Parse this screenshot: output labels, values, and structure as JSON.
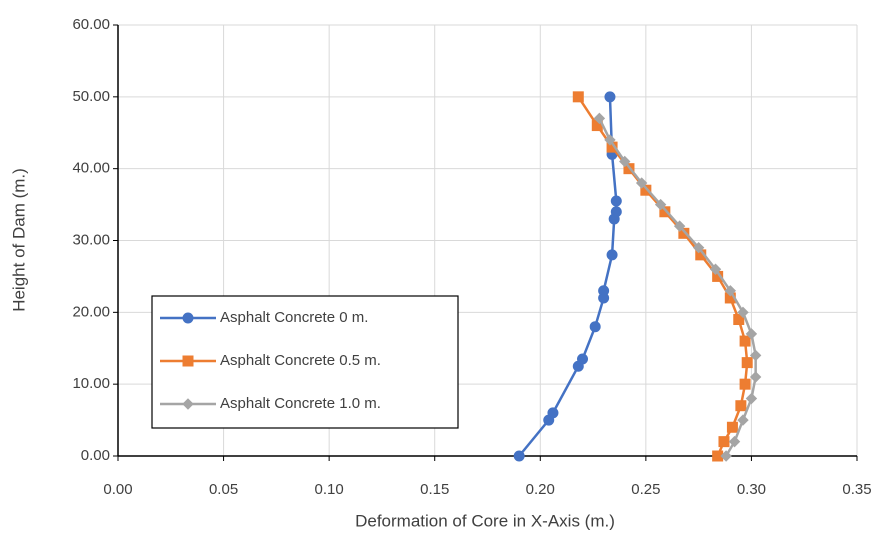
{
  "chart_data": {
    "type": "line",
    "x_label": "Deformation of Core in X-Axis (m.)",
    "y_label": "Height of Dam (m.)",
    "xlim": [
      0,
      0.35
    ],
    "ylim": [
      0,
      60
    ],
    "xticks": [
      {
        "value": 0,
        "label": "0.00"
      },
      {
        "value": 0.05,
        "label": "0.05"
      },
      {
        "value": 0.1,
        "label": "0.10"
      },
      {
        "value": 0.15,
        "label": "0.15"
      },
      {
        "value": 0.2,
        "label": "0.20"
      },
      {
        "value": 0.25,
        "label": "0.25"
      },
      {
        "value": 0.3,
        "label": "0.30"
      },
      {
        "value": 0.35,
        "label": "0.35"
      }
    ],
    "yticks": [
      {
        "value": 0,
        "label": "0.00"
      },
      {
        "value": 10,
        "label": "10.00"
      },
      {
        "value": 20,
        "label": "20.00"
      },
      {
        "value": 30,
        "label": "30.00"
      },
      {
        "value": 40,
        "label": "40.00"
      },
      {
        "value": 50,
        "label": "50.00"
      },
      {
        "value": 60,
        "label": "60.00"
      }
    ],
    "grid": true,
    "legend": "lower-left",
    "series": [
      {
        "name": "Asphalt Concrete 0 m.",
        "color": "#4472c4",
        "marker": "circle",
        "x": [
          0.19,
          0.204,
          0.206,
          0.218,
          0.22,
          0.226,
          0.23,
          0.23,
          0.234,
          0.235,
          0.236,
          0.236,
          0.234,
          0.233
        ],
        "values": [
          0,
          5,
          6,
          12.5,
          13.5,
          18,
          22,
          23,
          28,
          33,
          34,
          35.5,
          42,
          50
        ]
      },
      {
        "name": "Asphalt Concrete 0.5 m.",
        "color": "#ed7d31",
        "marker": "square",
        "x": [
          0.284,
          0.287,
          0.291,
          0.295,
          0.297,
          0.298,
          0.297,
          0.294,
          0.29,
          0.284,
          0.276,
          0.268,
          0.259,
          0.25,
          0.242,
          0.234,
          0.227,
          0.218
        ],
        "values": [
          0,
          2,
          4,
          7,
          10,
          13,
          16,
          19,
          22,
          25,
          28,
          31,
          34,
          37,
          40,
          43,
          46,
          50
        ]
      },
      {
        "name": "Asphalt Concrete 1.0 m.",
        "color": "#a5a5a5",
        "marker": "diamond",
        "x": [
          0.288,
          0.292,
          0.296,
          0.3,
          0.302,
          0.302,
          0.3,
          0.296,
          0.29,
          0.283,
          0.275,
          0.266,
          0.257,
          0.248,
          0.24,
          0.233,
          0.228
        ],
        "values": [
          0,
          2,
          5,
          8,
          11,
          14,
          17,
          20,
          23,
          26,
          29,
          32,
          35,
          38,
          41,
          44,
          47
        ]
      }
    ]
  }
}
